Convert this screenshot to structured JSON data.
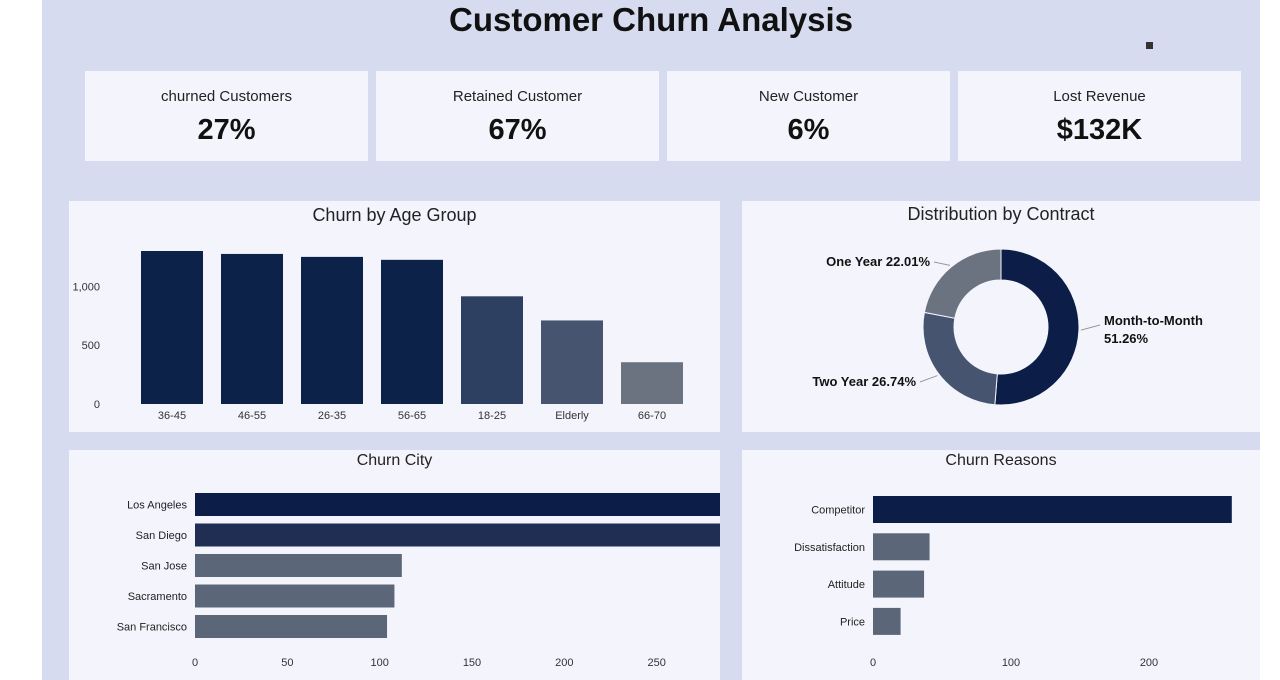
{
  "header": {
    "title": "Customer Churn Analysis"
  },
  "kpis": [
    {
      "label": "churned Customers",
      "value": "27%"
    },
    {
      "label": "Retained Customer",
      "value": "67%"
    },
    {
      "label": "New Customer",
      "value": "6%"
    },
    {
      "label": "Lost Revenue",
      "value": "$132K"
    }
  ],
  "chart_data": [
    {
      "id": "age",
      "type": "bar",
      "title": "Churn by Age Group",
      "categories": [
        "36-45",
        "46-55",
        "26-35",
        "56-65",
        "18-25",
        "Elderly",
        "66-70"
      ],
      "values": [
        1300,
        1275,
        1250,
        1225,
        915,
        710,
        355
      ],
      "colors": [
        "#0c2249",
        "#0c2249",
        "#0c2249",
        "#0c2249",
        "#2e4062",
        "#46546f",
        "#6b7280"
      ],
      "ylim": [
        0,
        1300
      ],
      "yticks": [
        0,
        500,
        1000
      ],
      "ytick_labels": [
        "0",
        "500",
        "1,000"
      ],
      "grid": false
    },
    {
      "id": "contract",
      "type": "pie",
      "title": "Distribution by Contract",
      "slices": [
        {
          "label": "Month-to-Month",
          "value": 51.26,
          "display": "51.26%",
          "color": "#0c1e48"
        },
        {
          "label": "Two Year",
          "value": 26.74,
          "display": "26.74%",
          "color": "#46546f"
        },
        {
          "label": "One Year",
          "value": 22.01,
          "display": "22.01%",
          "color": "#6b7280"
        }
      ]
    },
    {
      "id": "city",
      "type": "bar",
      "orientation": "horizontal",
      "title": "Churn City",
      "categories": [
        "Los Angeles",
        "San Diego",
        "San Jose",
        "Sacramento",
        "San Francisco"
      ],
      "values": [
        293,
        285,
        112,
        108,
        104
      ],
      "colors": [
        "#0c1e48",
        "#1f2e52",
        "#5c6679",
        "#5c6679",
        "#5c6679"
      ],
      "xlim": [
        0,
        300
      ],
      "xticks": [
        0,
        50,
        100,
        150,
        200,
        250,
        300
      ],
      "grid": false
    },
    {
      "id": "reasons",
      "type": "bar",
      "orientation": "horizontal",
      "title": "Churn Reasons",
      "categories": [
        "Competitor",
        "Dissatisfaction",
        "Attitude",
        "Price"
      ],
      "values": [
        260,
        41,
        37,
        20
      ],
      "colors": [
        "#0c1e48",
        "#5c6679",
        "#5c6679",
        "#5c6679"
      ],
      "xlim": [
        0,
        300
      ],
      "xticks": [
        0,
        100,
        200,
        300
      ],
      "grid": false
    }
  ]
}
